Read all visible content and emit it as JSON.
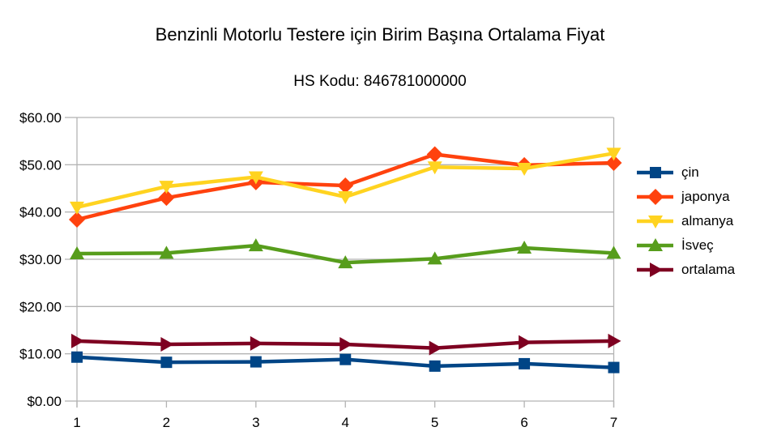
{
  "chart_data": {
    "type": "line",
    "title": "Benzinli Motorlu Testere için Birim Başına Ortalama Fiyat",
    "subtitle": "HS Kodu: 846781000000",
    "xlabel": "",
    "ylabel": "",
    "x": [
      "1",
      "2",
      "3",
      "4",
      "5",
      "6",
      "7"
    ],
    "ylim": [
      0,
      60
    ],
    "yticks": {
      "values": [
        0,
        10,
        20,
        30,
        40,
        50,
        60
      ],
      "labels": [
        "$0.00",
        "$10.00",
        "$20.00",
        "$30.00",
        "$40.00",
        "$50.00",
        "$60.00"
      ]
    },
    "grid": "horizontal",
    "legend_position": "right",
    "series": [
      {
        "name": "çin",
        "marker": "square",
        "color": "#004586",
        "values": [
          9.3,
          8.2,
          8.3,
          8.8,
          7.4,
          7.9,
          7.1
        ]
      },
      {
        "name": "japonya",
        "marker": "diamond",
        "color": "#FF420E",
        "values": [
          38.4,
          43.0,
          46.3,
          45.6,
          52.2,
          49.9,
          50.4
        ]
      },
      {
        "name": "almanya",
        "marker": "triangle-down",
        "color": "#FFD320",
        "values": [
          41.0,
          45.4,
          47.4,
          43.2,
          49.5,
          49.2,
          52.4
        ]
      },
      {
        "name": "İsveç",
        "marker": "triangle-up",
        "color": "#579D1C",
        "values": [
          31.2,
          31.3,
          32.9,
          29.3,
          30.1,
          32.4,
          31.3
        ]
      },
      {
        "name": "ortalama",
        "marker": "triangle-right",
        "color": "#7E0021",
        "values": [
          12.7,
          12.0,
          12.2,
          12.0,
          11.2,
          12.4,
          12.7
        ]
      }
    ],
    "colors": {
      "gridline": "#b3b3b3",
      "axis": "#b3b3b3",
      "text": "#000000",
      "background": "#ffffff"
    }
  }
}
